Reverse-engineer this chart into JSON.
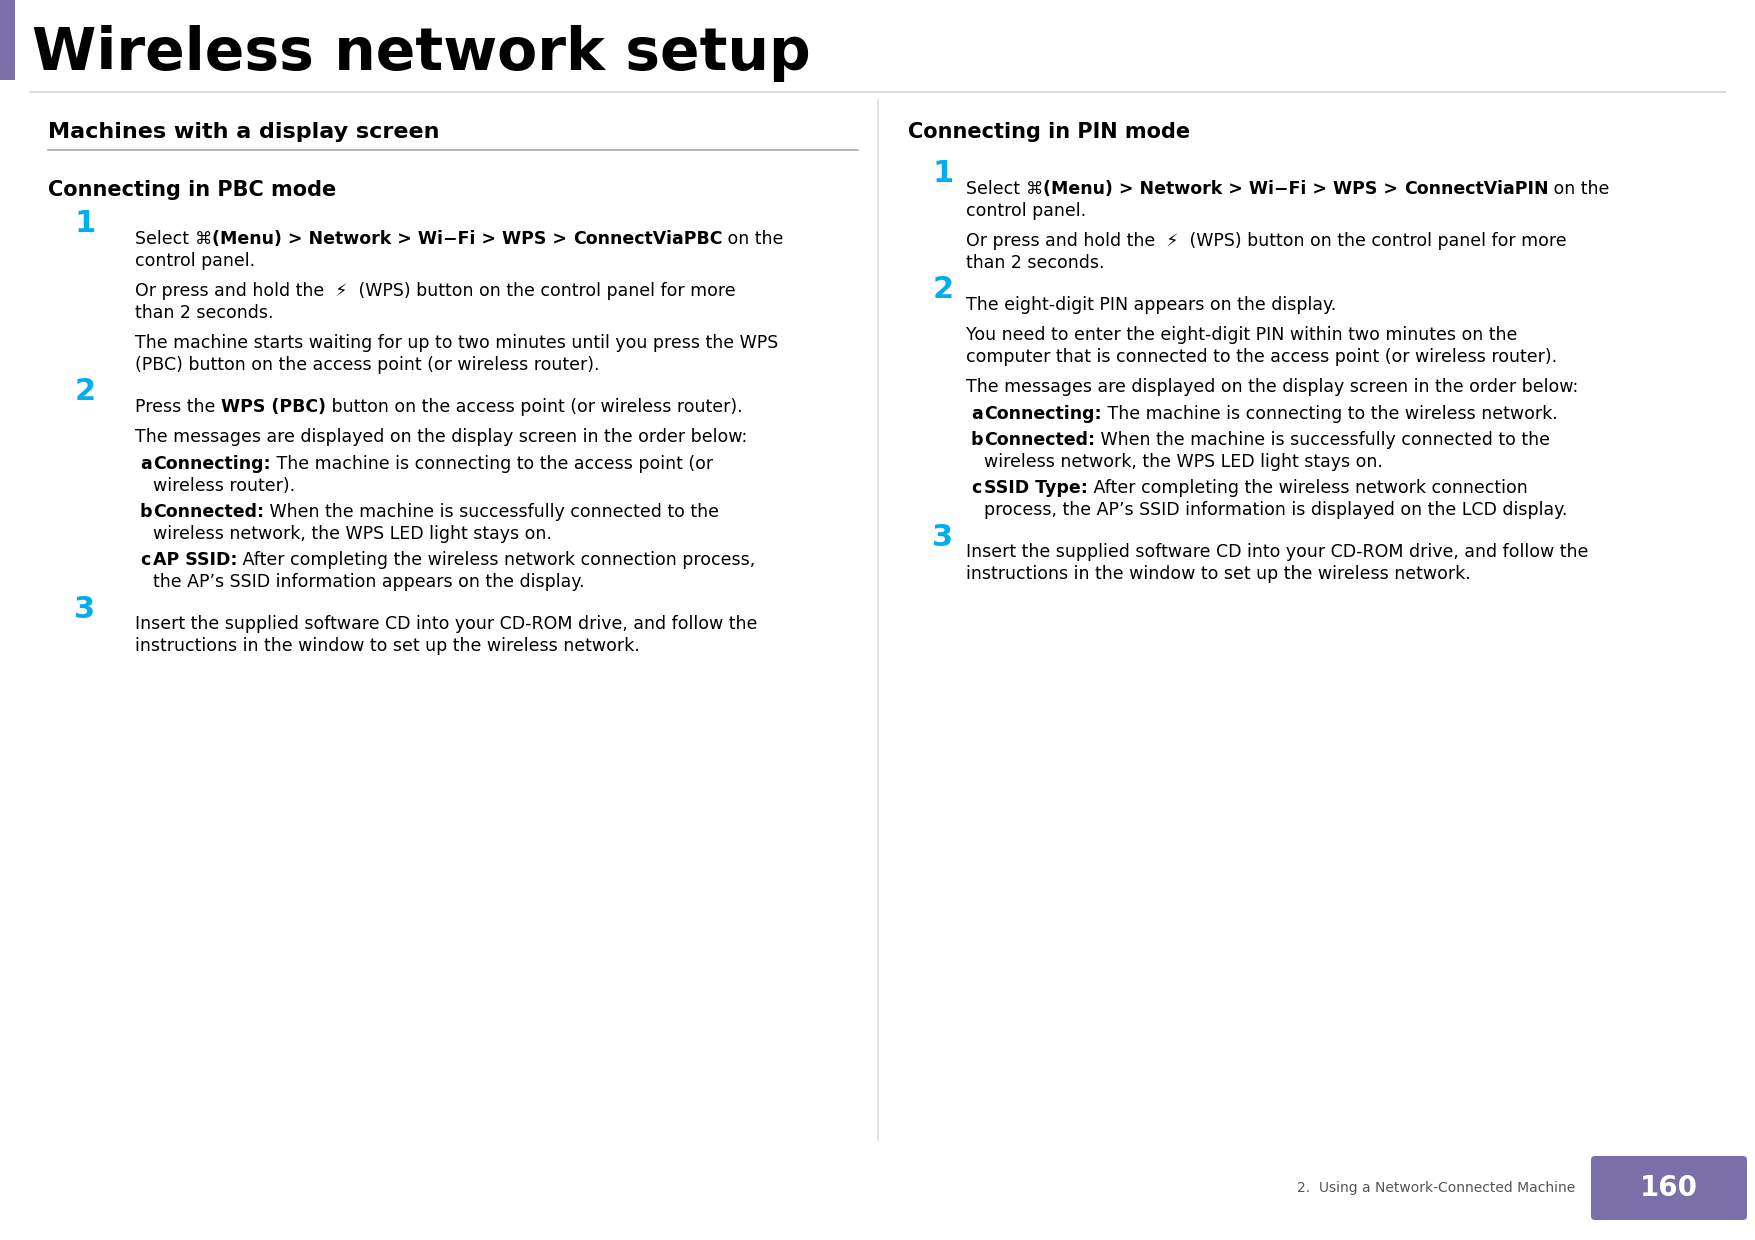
{
  "title": "Wireless network setup",
  "accent_color": "#7b6faa",
  "step_color": "#00aeef",
  "page_bg": "#ffffff",
  "text_color": "#000000",
  "separator_color": "#cccccc",
  "footer_text": "2.  Using a Network-Connected Machine",
  "page_number": "160",
  "title_fontsize": 42,
  "section_header_fontsize": 16,
  "sub_header_fontsize": 15,
  "body_fontsize": 12.5,
  "step_num_fontsize": 22,
  "footer_fontsize": 10
}
